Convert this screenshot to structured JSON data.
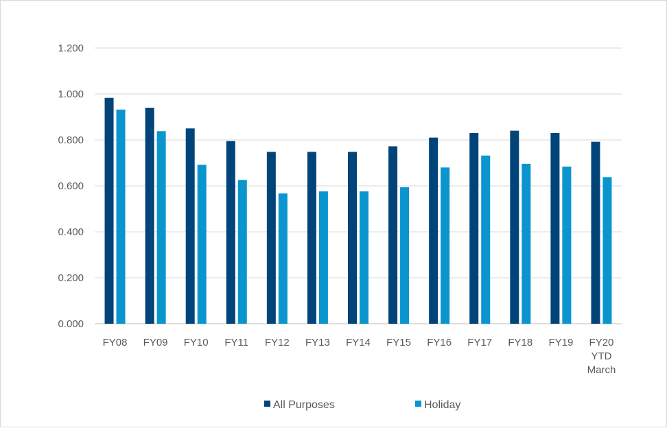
{
  "chart_data": {
    "type": "bar",
    "title": "",
    "xlabel": "",
    "ylabel": "",
    "ylim": [
      0,
      1.2
    ],
    "yticks": [
      "0.000",
      "0.200",
      "0.400",
      "0.600",
      "0.800",
      "1.000",
      "1.200"
    ],
    "grid": true,
    "legend_position": "bottom",
    "categories": [
      [
        "FY08"
      ],
      [
        "FY09"
      ],
      [
        "FY10"
      ],
      [
        "FY11"
      ],
      [
        "FY12"
      ],
      [
        "FY13"
      ],
      [
        "FY14"
      ],
      [
        "FY15"
      ],
      [
        "FY16"
      ],
      [
        "FY17"
      ],
      [
        "FY18"
      ],
      [
        "FY19"
      ],
      [
        "FY20",
        "YTD",
        "March"
      ]
    ],
    "series": [
      {
        "name": "All Purposes",
        "color": "#004479",
        "values": [
          0.983,
          0.94,
          0.85,
          0.795,
          0.748,
          0.748,
          0.748,
          0.772,
          0.81,
          0.83,
          0.84,
          0.83,
          0.792
        ]
      },
      {
        "name": "Holiday",
        "color": "#0A95CF",
        "values": [
          0.932,
          0.838,
          0.692,
          0.626,
          0.567,
          0.576,
          0.576,
          0.594,
          0.68,
          0.732,
          0.696,
          0.684,
          0.638
        ]
      }
    ]
  }
}
